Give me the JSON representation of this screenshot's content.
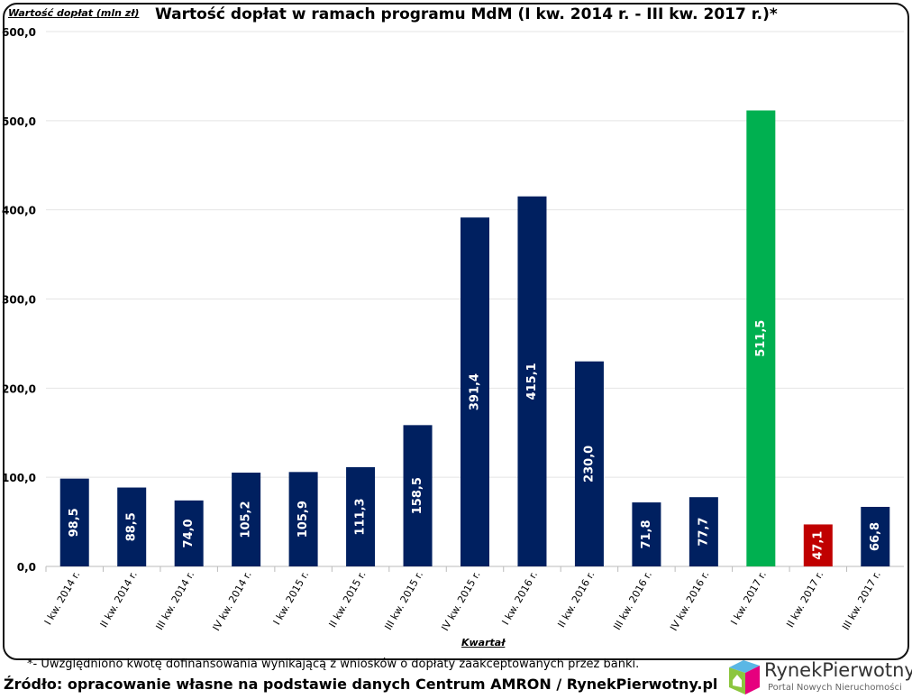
{
  "chart_data": {
    "type": "bar",
    "title": "Wartość dopłat w ramach programu MdM (I kw. 2014 r. - III kw. 2017 r.)*",
    "ylabel": "Wartość dopłat (mln zł)",
    "xlabel": "Kwartał",
    "ylim": [
      0,
      600
    ],
    "yticks": [
      "0,0",
      "100,0",
      "200,0",
      "300,0",
      "400,0",
      "500,0",
      "600,0"
    ],
    "grid": true,
    "categories": [
      "I kw. 2014 r.",
      "II kw. 2014 r.",
      "III kw. 2014 r.",
      "IV kw. 2014 r.",
      "I kw. 2015 r.",
      "II kw. 2015 r.",
      "III kw. 2015 r.",
      "IV kw. 2015 r.",
      "I kw. 2016 r.",
      "II kw. 2016 r.",
      "III kw. 2016 r.",
      "IV kw. 2016 r.",
      "I kw. 2017 r.",
      "II kw. 2017 r.",
      "III kw. 2017 r."
    ],
    "values": [
      98.5,
      88.5,
      74.0,
      105.2,
      105.9,
      111.3,
      158.5,
      391.4,
      415.1,
      230.0,
      71.8,
      77.7,
      511.5,
      47.1,
      66.8
    ],
    "data_labels": [
      "98,5",
      "88,5",
      "74,0",
      "105,2",
      "105,9",
      "111,3",
      "158,5",
      "391,4",
      "415,1",
      "230,0",
      "71,8",
      "77,7",
      "511,5",
      "47,1",
      "66,8"
    ],
    "colors": [
      "#002060",
      "#002060",
      "#002060",
      "#002060",
      "#002060",
      "#002060",
      "#002060",
      "#002060",
      "#002060",
      "#002060",
      "#002060",
      "#002060",
      "#00b050",
      "#c00000",
      "#002060"
    ]
  },
  "footnote": "*- Uwzględniono kwotę dofinansowania wynikającą z wniosków o dopłaty zaakceptowanych przez banki.",
  "source": "Źródło: opracowanie własne na podstawie danych Centrum AMRON / RynekPierwotny.pl",
  "logo": {
    "name": "RynekPierwotny",
    "tagline": "Portal Nowych Nieruchomości"
  }
}
